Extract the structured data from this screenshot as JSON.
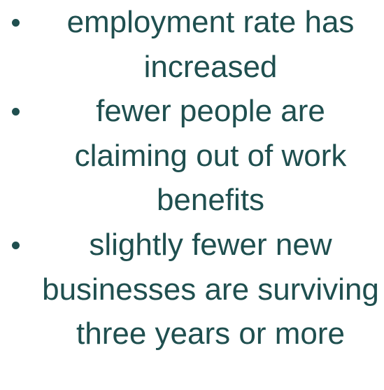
{
  "items": [
    "employment rate has increased",
    "fewer people are claiming out of work benefits",
    "slightly fewer new businesses are surviving three years or more"
  ]
}
